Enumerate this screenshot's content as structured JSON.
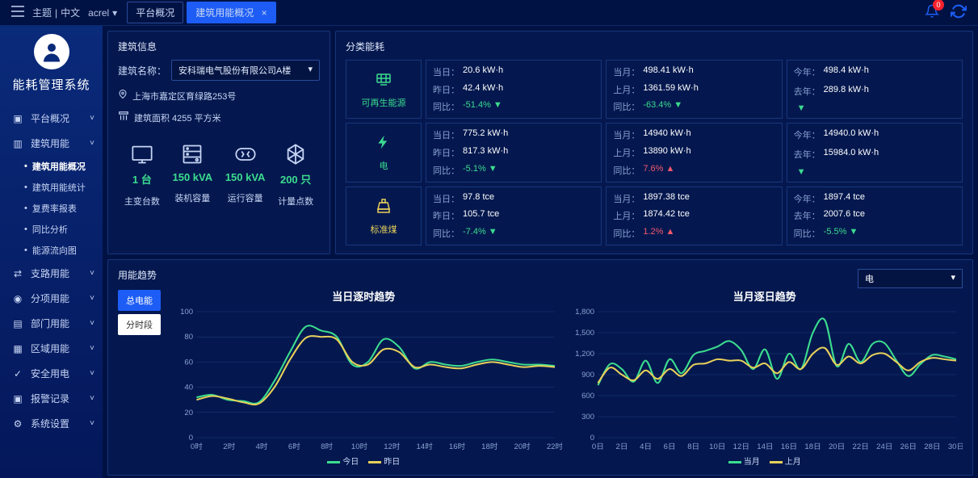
{
  "top": {
    "theme": "主题",
    "lang": "中文",
    "user": "acrel",
    "notif_count": "0",
    "tabs": [
      {
        "label": "平台概况"
      },
      {
        "label": "建筑用能概况"
      }
    ]
  },
  "sidebar": {
    "title": "能耗管理系统",
    "items": [
      {
        "label": "平台概况"
      },
      {
        "label": "建筑用能",
        "open": true,
        "children": [
          {
            "label": "建筑用能概况",
            "active": true
          },
          {
            "label": "建筑用能统计"
          },
          {
            "label": "复费率报表"
          },
          {
            "label": "同比分析"
          },
          {
            "label": "能源流向图"
          }
        ]
      },
      {
        "label": "支路用能"
      },
      {
        "label": "分项用能"
      },
      {
        "label": "部门用能"
      },
      {
        "label": "区域用能"
      },
      {
        "label": "安全用电"
      },
      {
        "label": "报警记录"
      },
      {
        "label": "系统设置"
      }
    ]
  },
  "building_info": {
    "title": "建筑信息",
    "name_label": "建筑名称：",
    "name_value": "安科瑞电气股份有限公司A楼",
    "address": "上海市嘉定区育绿路253号",
    "area": "建筑面积 4255 平方米",
    "metrics": [
      {
        "value": "1 台",
        "label": "主变台数"
      },
      {
        "value": "150 kVA",
        "label": "装机容量"
      },
      {
        "value": "150 kVA",
        "label": "运行容量"
      },
      {
        "value": "200 只",
        "label": "计量点数"
      }
    ]
  },
  "energy": {
    "title": "分类能耗",
    "row_heads": [
      {
        "label": "可再生能源",
        "color": "green"
      },
      {
        "label": "电",
        "color": "green"
      },
      {
        "label": "标准煤",
        "color": "yellow"
      }
    ],
    "grid": [
      [
        {
          "l1k": "当日：",
          "l1v": "20.6 kW·h",
          "l2k": "昨日：",
          "l2v": "42.4 kW·h",
          "rk": "同比：",
          "rv": "-51.4%",
          "dir": "down"
        },
        {
          "l1k": "当月：",
          "l1v": "498.41 kW·h",
          "l2k": "上月：",
          "l2v": "1361.59 kW·h",
          "rk": "同比：",
          "rv": "-63.4%",
          "dir": "down"
        },
        {
          "l1k": "今年：",
          "l1v": "498.4 kW·h",
          "l2k": "去年：",
          "l2v": "289.8 kW·h",
          "rk": "",
          "rv": "",
          "dir": "down"
        }
      ],
      [
        {
          "l1k": "当日：",
          "l1v": "775.2 kW·h",
          "l2k": "昨日：",
          "l2v": "817.3 kW·h",
          "rk": "同比：",
          "rv": "-5.1%",
          "dir": "down"
        },
        {
          "l1k": "当月：",
          "l1v": "14940 kW·h",
          "l2k": "上月：",
          "l2v": "13890 kW·h",
          "rk": "同比：",
          "rv": "7.6%",
          "dir": "up"
        },
        {
          "l1k": "今年：",
          "l1v": "14940.0 kW·h",
          "l2k": "去年：",
          "l2v": "15984.0 kW·h",
          "rk": "",
          "rv": "",
          "dir": "down"
        }
      ],
      [
        {
          "l1k": "当日：",
          "l1v": "97.8 tce",
          "l2k": "昨日：",
          "l2v": "105.7 tce",
          "rk": "同比：",
          "rv": "-7.4%",
          "dir": "down"
        },
        {
          "l1k": "当月：",
          "l1v": "1897.38 tce",
          "l2k": "上月：",
          "l2v": "1874.42 tce",
          "rk": "同比：",
          "rv": "1.2%",
          "dir": "up"
        },
        {
          "l1k": "今年：",
          "l1v": "1897.4 tce",
          "l2k": "去年：",
          "l2v": "2007.6 tce",
          "rk": "同比：",
          "rv": "-5.5%",
          "dir": "down"
        }
      ]
    ]
  },
  "trend": {
    "title": "用能趋势",
    "btn_total": "总电能",
    "btn_timed": "分时段",
    "select_value": "电",
    "chart1": {
      "title": "当日逐时趋势",
      "ylim": [
        0,
        100
      ],
      "yticks": [
        0,
        20,
        40,
        60,
        80,
        100
      ],
      "xticks": [
        "0时",
        "2时",
        "4时",
        "6时",
        "8时",
        "10时",
        "12时",
        "14时",
        "16时",
        "18时",
        "20时",
        "22时"
      ],
      "legend": [
        "今日",
        "昨日"
      ],
      "colors": [
        "#3cdc8f",
        "#e8d05a"
      ],
      "series": [
        [
          32,
          34,
          30,
          29,
          28,
          45,
          68,
          88,
          85,
          80,
          58,
          60,
          78,
          72,
          55,
          60,
          58,
          57,
          60,
          62,
          60,
          58,
          58,
          57
        ],
        [
          30,
          33,
          31,
          28,
          27,
          40,
          62,
          79,
          80,
          78,
          60,
          58,
          70,
          68,
          56,
          58,
          56,
          55,
          58,
          60,
          58,
          56,
          57,
          56
        ]
      ]
    },
    "chart2": {
      "title": "当月逐日趋势",
      "ylim": [
        0,
        1800
      ],
      "yticks": [
        0,
        300,
        600,
        900,
        1200,
        1500,
        1800
      ],
      "xticks": [
        "0日",
        "2日",
        "4日",
        "6日",
        "8日",
        "10日",
        "12日",
        "14日",
        "16日",
        "18日",
        "20日",
        "22日",
        "24日",
        "26日",
        "28日",
        "30日"
      ],
      "legend": [
        "当月",
        "上月"
      ],
      "colors": [
        "#3cdc8f",
        "#e8d05a"
      ],
      "series": [
        [
          750,
          1050,
          980,
          800,
          1100,
          780,
          1120,
          920,
          1180,
          1240,
          1300,
          1380,
          1250,
          980,
          1260,
          840,
          1200,
          980,
          1500,
          1680,
          1020,
          1340,
          1080,
          1340,
          1350,
          1100,
          880,
          1050,
          1180,
          1160,
          1120
        ],
        [
          780,
          1000,
          900,
          820,
          960,
          840,
          980,
          880,
          1040,
          1060,
          1120,
          1100,
          1100,
          1000,
          1060,
          920,
          1080,
          980,
          1200,
          1280,
          1040,
          1160,
          1060,
          1180,
          1200,
          1080,
          960,
          1080,
          1140,
          1120,
          1100
        ]
      ]
    }
  }
}
